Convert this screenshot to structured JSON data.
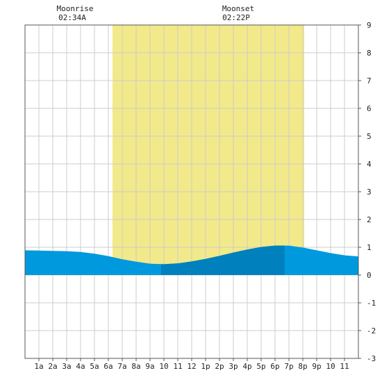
{
  "chart_data": {
    "type": "area",
    "title": "",
    "xlabel": "",
    "ylabel": "",
    "x_start_hour": 0,
    "x_end_hour": 24,
    "xlim": [
      0,
      24
    ],
    "ylim": [
      -3,
      9
    ],
    "y_ticks": [
      -3,
      -2,
      -1,
      0,
      1,
      2,
      3,
      4,
      5,
      6,
      7,
      8,
      9
    ],
    "x_tick_labels": [
      "1a",
      "2a",
      "3a",
      "4a",
      "5a",
      "6a",
      "7a",
      "8a",
      "9a",
      "10",
      "11",
      "12",
      "1p",
      "2p",
      "3p",
      "4p",
      "5p",
      "6p",
      "7p",
      "8p",
      "9p",
      "10",
      "11"
    ],
    "x_tick_hours": [
      1,
      2,
      3,
      4,
      5,
      6,
      7,
      8,
      9,
      10,
      11,
      12,
      13,
      14,
      15,
      16,
      17,
      18,
      19,
      20,
      21,
      22,
      23
    ],
    "grid": true,
    "daylight": {
      "start_hour": 6.3,
      "end_hour": 20.1,
      "color": "#f2e98a"
    },
    "moonrise": {
      "label": "Moonrise",
      "time": "02:34A",
      "hour": 2.57
    },
    "moonset": {
      "label": "Moonset",
      "time": "02:22P",
      "hour": 14.37
    },
    "highlight": {
      "start_hour": 9.8,
      "end_hour": 18.7
    },
    "colors": {
      "water": "#0099dd",
      "water_highlight": "#0081bd",
      "grid": "#cccccc",
      "frame": "#555555"
    },
    "series": [
      {
        "x": [
          0,
          1,
          2,
          3,
          4,
          5,
          6,
          7,
          8,
          9,
          10,
          11,
          12,
          13,
          14,
          15,
          16,
          17,
          18,
          19,
          20,
          21,
          22,
          23,
          24
        ],
        "values": [
          0.89,
          0.88,
          0.87,
          0.86,
          0.83,
          0.77,
          0.68,
          0.57,
          0.48,
          0.41,
          0.39,
          0.42,
          0.49,
          0.58,
          0.69,
          0.81,
          0.92,
          1.01,
          1.06,
          1.06,
          0.99,
          0.89,
          0.79,
          0.71,
          0.67
        ]
      }
    ]
  }
}
